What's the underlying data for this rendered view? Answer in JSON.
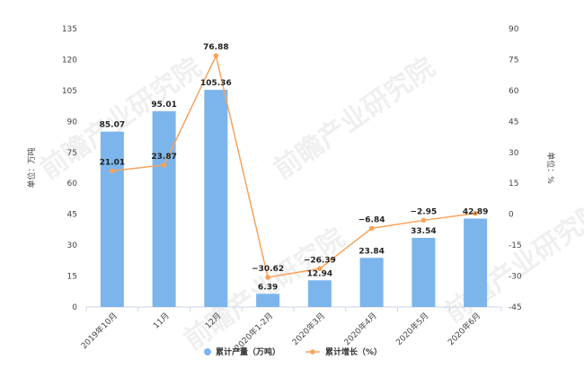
{
  "chart_data": {
    "type": "bar",
    "categories": [
      "2019年10月",
      "11月",
      "12月",
      "2020年1-2月",
      "2020年3月",
      "2020年4月",
      "2020年5月",
      "2020年6月"
    ],
    "series": [
      {
        "name": "累计产量（万吨）",
        "type": "bar",
        "axis": "left",
        "color": "#7cb5ec",
        "values": [
          85.07,
          95.01,
          105.36,
          6.39,
          12.94,
          23.84,
          33.54,
          42.89
        ]
      },
      {
        "name": "累计增长（%）",
        "type": "line",
        "axis": "right",
        "color": "#f7a35c",
        "values": [
          21.01,
          23.87,
          76.88,
          -30.62,
          -26.39,
          -6.84,
          -2.95,
          0.45
        ],
        "labels": [
          "21.01",
          "23.87",
          "76.88",
          "−30.62",
          "−26.39",
          "−6.84",
          "−2.95",
          ""
        ]
      }
    ],
    "ylabel": "单位：万吨",
    "y2label": "单位：%",
    "ylim": [
      0,
      135
    ],
    "yticks": [
      0,
      15,
      30,
      45,
      60,
      75,
      90,
      105,
      120,
      135
    ],
    "y2lim": [
      -45,
      90
    ],
    "y2ticks": [
      -45,
      -30,
      -15,
      0,
      15,
      30,
      45,
      60,
      75,
      90
    ],
    "grid": false,
    "legend": "bottom"
  },
  "watermark": {
    "text": "前瞻产业研究院"
  }
}
